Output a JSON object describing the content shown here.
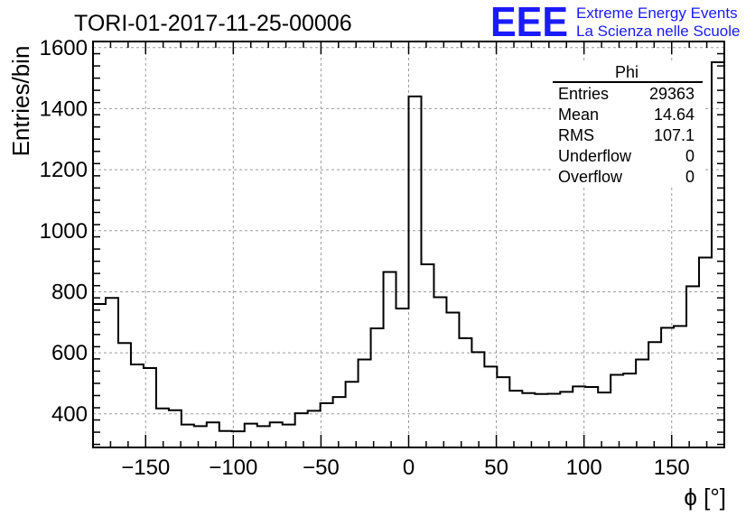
{
  "chart_data": {
    "type": "bar",
    "title": "TORI-01-2017-11-25-00006",
    "xlabel": "ϕ [°]",
    "ylabel": "Entries/bin",
    "xlim": [
      -180,
      180
    ],
    "ylim": [
      290,
      1620
    ],
    "grid": true,
    "bin_edges": [
      -180,
      -172.8,
      -165.6,
      -158.4,
      -151.2,
      -144,
      -136.8,
      -129.6,
      -122.4,
      -115.2,
      -108,
      -100.8,
      -93.6,
      -86.4,
      -79.2,
      -72,
      -64.8,
      -57.6,
      -50.4,
      -43.2,
      -36,
      -28.8,
      -21.6,
      -14.4,
      -7.2,
      0,
      7.2,
      14.4,
      21.6,
      28.8,
      36,
      43.2,
      50.4,
      57.6,
      64.8,
      72,
      79.2,
      86.4,
      93.6,
      100.8,
      108,
      115.2,
      122.4,
      129.6,
      136.8,
      144,
      151.2,
      158.4,
      165.6,
      172.8,
      180
    ],
    "values": [
      760,
      780,
      632,
      562,
      550,
      418,
      412,
      365,
      360,
      372,
      344,
      343,
      368,
      360,
      372,
      365,
      402,
      410,
      435,
      455,
      505,
      578,
      680,
      865,
      745,
      1440,
      890,
      782,
      732,
      648,
      602,
      555,
      520,
      476,
      468,
      465,
      466,
      472,
      490,
      488,
      470,
      528,
      532,
      578,
      635,
      682,
      688,
      818,
      912,
      1552
    ],
    "x_ticks": [
      -150,
      -100,
      -50,
      0,
      50,
      100,
      150
    ],
    "x_tick_labels": [
      "−150",
      "−100",
      "−50",
      "0",
      "50",
      "100",
      "150"
    ],
    "y_ticks": [
      400,
      600,
      800,
      1000,
      1200,
      1400,
      1600
    ],
    "y_tick_labels": [
      "400",
      "600",
      "800",
      "1000",
      "1200",
      "1400",
      "1600"
    ],
    "stats": {
      "name": "Phi",
      "rows": [
        {
          "label": "Entries",
          "value": "29363"
        },
        {
          "label": "Mean",
          "value": "14.64"
        },
        {
          "label": "RMS",
          "value": "107.1"
        },
        {
          "label": "Underflow",
          "value": "0"
        },
        {
          "label": "Overflow",
          "value": "0"
        }
      ]
    }
  },
  "logo": {
    "mark": "EEE",
    "line1": "Extreme Energy Events",
    "line2": "La Scienza nelle Scuole",
    "color": "#1a1aff"
  }
}
